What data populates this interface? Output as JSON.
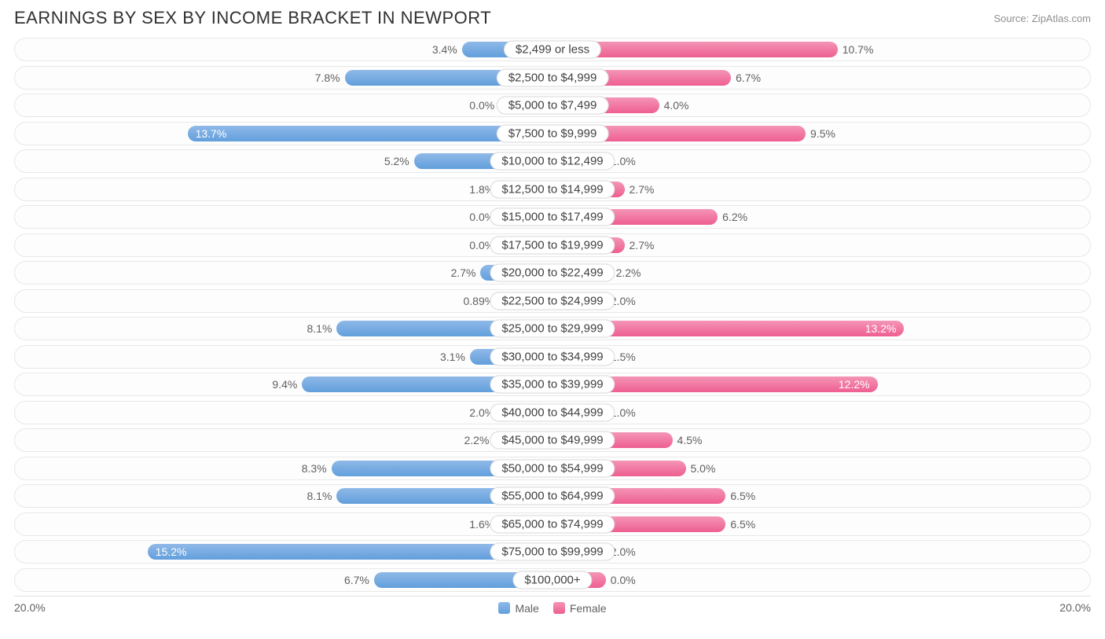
{
  "header": {
    "title": "EARNINGS BY SEX BY INCOME BRACKET IN NEWPORT",
    "source": "Source: ZipAtlas.com"
  },
  "chart": {
    "type": "diverging-bar",
    "max_pct": 20.0,
    "min_bar_pct": 2.0,
    "colors": {
      "male_top": "#8fb9e8",
      "male_bottom": "#629fdc",
      "female_top": "#f495b6",
      "female_bottom": "#ee5e91",
      "row_bg": "#fdfdfd",
      "row_border": "#e8e8e8",
      "text": "#606060",
      "title_text": "#303030",
      "source_text": "#909090"
    },
    "legend": {
      "male": "Male",
      "female": "Female"
    },
    "axis": {
      "left": "20.0%",
      "right": "20.0%"
    },
    "rows": [
      {
        "label": "$2,499 or less",
        "male": 3.4,
        "male_txt": "3.4%",
        "female": 10.7,
        "female_txt": "10.7%"
      },
      {
        "label": "$2,500 to $4,999",
        "male": 7.8,
        "male_txt": "7.8%",
        "female": 6.7,
        "female_txt": "6.7%"
      },
      {
        "label": "$5,000 to $7,499",
        "male": 0.0,
        "male_txt": "0.0%",
        "female": 4.0,
        "female_txt": "4.0%"
      },
      {
        "label": "$7,500 to $9,999",
        "male": 13.7,
        "male_txt": "13.7%",
        "female": 9.5,
        "female_txt": "9.5%"
      },
      {
        "label": "$10,000 to $12,499",
        "male": 5.2,
        "male_txt": "5.2%",
        "female": 1.0,
        "female_txt": "1.0%"
      },
      {
        "label": "$12,500 to $14,999",
        "male": 1.8,
        "male_txt": "1.8%",
        "female": 2.7,
        "female_txt": "2.7%"
      },
      {
        "label": "$15,000 to $17,499",
        "male": 0.0,
        "male_txt": "0.0%",
        "female": 6.2,
        "female_txt": "6.2%"
      },
      {
        "label": "$17,500 to $19,999",
        "male": 0.0,
        "male_txt": "0.0%",
        "female": 2.7,
        "female_txt": "2.7%"
      },
      {
        "label": "$20,000 to $22,499",
        "male": 2.7,
        "male_txt": "2.7%",
        "female": 2.2,
        "female_txt": "2.2%"
      },
      {
        "label": "$22,500 to $24,999",
        "male": 0.89,
        "male_txt": "0.89%",
        "female": 2.0,
        "female_txt": "2.0%"
      },
      {
        "label": "$25,000 to $29,999",
        "male": 8.1,
        "male_txt": "8.1%",
        "female": 13.2,
        "female_txt": "13.2%"
      },
      {
        "label": "$30,000 to $34,999",
        "male": 3.1,
        "male_txt": "3.1%",
        "female": 1.5,
        "female_txt": "1.5%"
      },
      {
        "label": "$35,000 to $39,999",
        "male": 9.4,
        "male_txt": "9.4%",
        "female": 12.2,
        "female_txt": "12.2%"
      },
      {
        "label": "$40,000 to $44,999",
        "male": 2.0,
        "male_txt": "2.0%",
        "female": 1.0,
        "female_txt": "1.0%"
      },
      {
        "label": "$45,000 to $49,999",
        "male": 2.2,
        "male_txt": "2.2%",
        "female": 4.5,
        "female_txt": "4.5%"
      },
      {
        "label": "$50,000 to $54,999",
        "male": 8.3,
        "male_txt": "8.3%",
        "female": 5.0,
        "female_txt": "5.0%"
      },
      {
        "label": "$55,000 to $64,999",
        "male": 8.1,
        "male_txt": "8.1%",
        "female": 6.5,
        "female_txt": "6.5%"
      },
      {
        "label": "$65,000 to $74,999",
        "male": 1.6,
        "male_txt": "1.6%",
        "female": 6.5,
        "female_txt": "6.5%"
      },
      {
        "label": "$75,000 to $99,999",
        "male": 15.2,
        "male_txt": "15.2%",
        "female": 2.0,
        "female_txt": "2.0%"
      },
      {
        "label": "$100,000+",
        "male": 6.7,
        "male_txt": "6.7%",
        "female": 0.0,
        "female_txt": "0.0%"
      }
    ]
  }
}
